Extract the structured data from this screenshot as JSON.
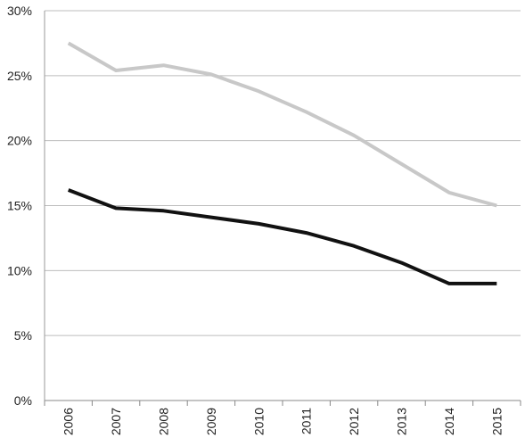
{
  "chart_data": {
    "type": "line",
    "title": "",
    "xlabel": "",
    "ylabel": "",
    "x": [
      "2006",
      "2007",
      "2008",
      "2009",
      "2010",
      "2011",
      "2012",
      "2013",
      "2014",
      "2015"
    ],
    "ylim": [
      0,
      30
    ],
    "yticks": [
      "0%",
      "5%",
      "10%",
      "15%",
      "20%",
      "25%",
      "30%"
    ],
    "grid": true,
    "legend": "none",
    "series": [
      {
        "color": "#c8c8c8",
        "values": [
          27.5,
          25.4,
          25.8,
          25.1,
          23.8,
          22.2,
          20.4,
          18.2,
          16.0,
          15.0
        ]
      },
      {
        "color": "#111111",
        "values": [
          16.2,
          14.8,
          14.6,
          14.1,
          13.6,
          12.9,
          11.9,
          10.6,
          9.0,
          9.0
        ]
      }
    ]
  }
}
